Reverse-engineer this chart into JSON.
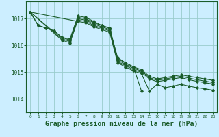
{
  "background_color": "#cceeff",
  "grid_color": "#99cccc",
  "line_color": "#1a5c2a",
  "xlabel": "Graphe pression niveau de la mer (hPa)",
  "xlabel_fontsize": 7,
  "ytick_labels": [
    "1014",
    "1015",
    "1016",
    "1017"
  ],
  "yticks": [
    1014,
    1015,
    1016,
    1017
  ],
  "xticks": [
    0,
    1,
    2,
    3,
    4,
    5,
    6,
    7,
    8,
    9,
    10,
    11,
    12,
    13,
    14,
    15,
    16,
    17,
    18,
    19,
    20,
    21,
    22,
    23
  ],
  "xlim": [
    -0.5,
    23.5
  ],
  "ylim": [
    1013.5,
    1017.65
  ],
  "series": [
    {
      "x": [
        0,
        1,
        2,
        3,
        4,
        5,
        6,
        7,
        8,
        9,
        10,
        11,
        12,
        13,
        14
      ],
      "y": [
        1017.25,
        1016.75,
        1016.65,
        1016.55,
        1016.3,
        1016.25,
        1017.1,
        1017.05,
        1016.9,
        1016.75,
        1016.65,
        1015.55,
        1015.35,
        1015.2,
        1014.3
      ]
    },
    {
      "x": [
        0,
        1,
        2,
        3,
        4,
        5,
        6,
        7,
        8,
        9,
        10,
        11,
        12,
        13,
        14,
        15,
        16,
        17,
        18,
        19,
        20,
        21,
        22,
        23
      ],
      "y": [
        1017.25,
        1016.75,
        1016.65,
        1016.55,
        1016.3,
        1016.2,
        1017.05,
        1017.0,
        1016.85,
        1016.75,
        1016.65,
        1015.5,
        1015.35,
        1015.2,
        1015.1,
        1014.85,
        1014.75,
        1014.8,
        1014.85,
        1014.9,
        1014.85,
        1014.8,
        1014.75,
        1014.7
      ]
    },
    {
      "x": [
        0,
        4,
        5,
        6,
        7,
        8,
        9,
        10,
        11,
        12,
        13,
        14,
        15,
        16,
        17,
        18,
        19,
        20,
        21,
        22,
        23
      ],
      "y": [
        1017.25,
        1016.25,
        1016.15,
        1017.0,
        1016.95,
        1016.8,
        1016.7,
        1016.6,
        1015.45,
        1015.3,
        1015.15,
        1015.05,
        1014.8,
        1014.7,
        1014.75,
        1014.8,
        1014.85,
        1014.78,
        1014.72,
        1014.67,
        1014.62
      ]
    },
    {
      "x": [
        0,
        4,
        5,
        6,
        7,
        8,
        9,
        10,
        11,
        12,
        13,
        14,
        15,
        16,
        17,
        18,
        19,
        20,
        21,
        22,
        23
      ],
      "y": [
        1017.25,
        1016.2,
        1016.1,
        1016.95,
        1016.9,
        1016.75,
        1016.65,
        1016.55,
        1015.4,
        1015.25,
        1015.1,
        1015.0,
        1014.75,
        1014.65,
        1014.7,
        1014.75,
        1014.8,
        1014.72,
        1014.66,
        1014.61,
        1014.56
      ]
    },
    {
      "x": [
        0,
        6,
        7,
        8,
        9,
        10,
        11,
        12,
        13,
        14,
        15,
        16,
        17,
        18,
        19,
        20,
        21,
        22,
        23
      ],
      "y": [
        1017.25,
        1016.9,
        1016.85,
        1016.7,
        1016.6,
        1016.5,
        1015.35,
        1015.2,
        1015.05,
        1014.95,
        1014.3,
        1014.55,
        1014.42,
        1014.48,
        1014.55,
        1014.48,
        1014.42,
        1014.38,
        1014.33
      ]
    }
  ]
}
